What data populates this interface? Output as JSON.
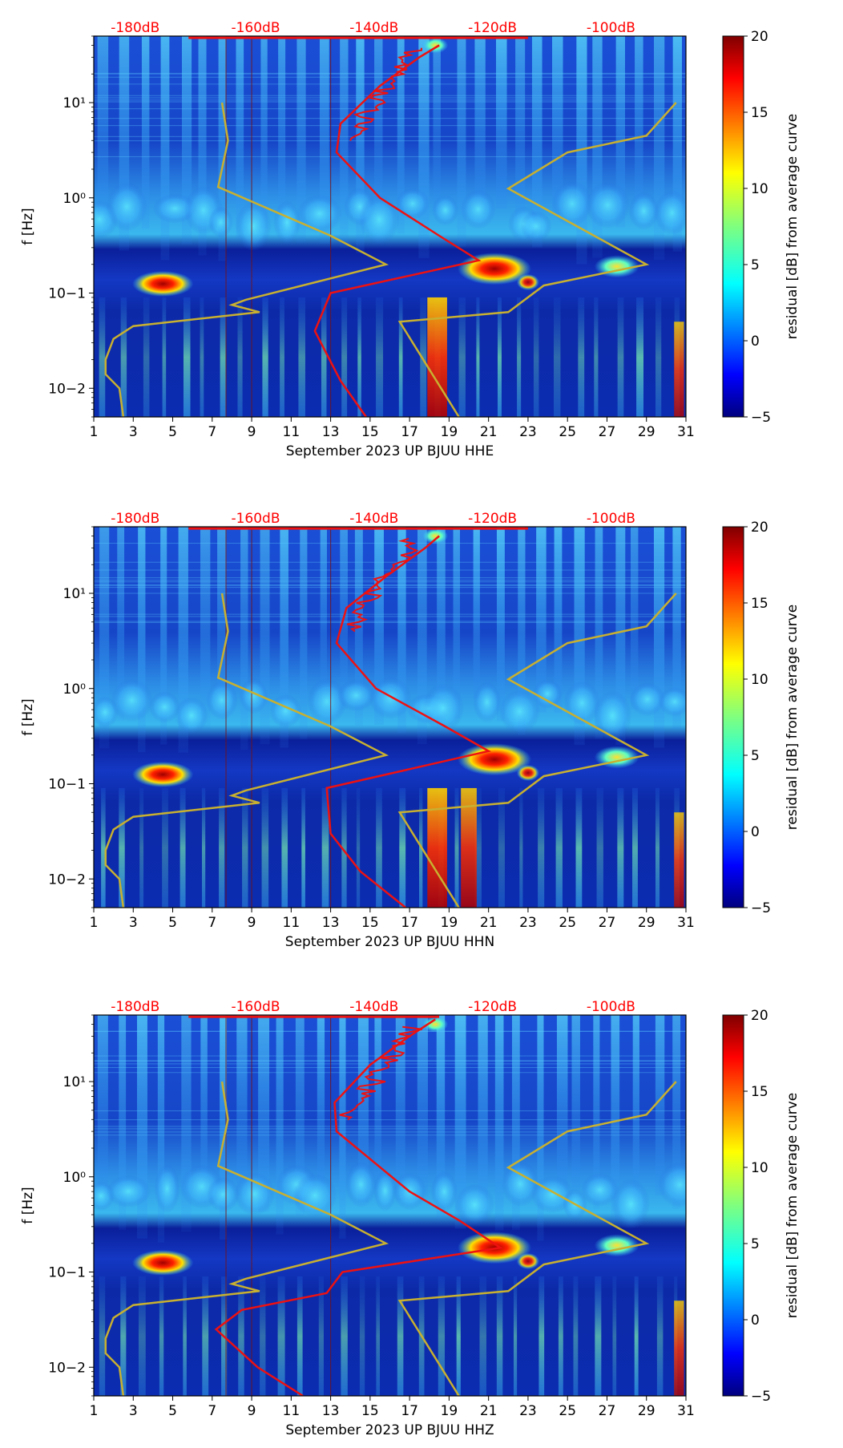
{
  "chart_data": [
    {
      "type": "heatmap",
      "channel": "HHE",
      "xlabel": "September 2023 UP BJUU  HHE",
      "ylabel": "f [Hz]",
      "colorbar_label": "residual [dB] from average curve",
      "xlim": [
        1,
        31
      ],
      "ylim_hz": [
        0.005,
        50
      ],
      "yscale": "log",
      "x_ticks": [
        "1",
        "3",
        "5",
        "7",
        "9",
        "11",
        "13",
        "15",
        "17",
        "19",
        "21",
        "23",
        "25",
        "27",
        "29",
        "31"
      ],
      "y_ticks": [
        "10−2",
        "10−1",
        "10⁰",
        "10¹"
      ],
      "top_axis_labels": [
        "-180dB",
        "-160dB",
        "-140dB",
        "-120dB",
        "-100dB"
      ],
      "colorbar_ticks": [
        "20",
        "15",
        "10",
        "5",
        "0",
        "−5"
      ],
      "colorbar_range_db": [
        -5,
        20
      ]
    },
    {
      "type": "heatmap",
      "channel": "HHN",
      "xlabel": "September 2023 UP BJUU  HHN",
      "ylabel": "f [Hz]",
      "colorbar_label": "residual [dB] from average curve",
      "xlim": [
        1,
        31
      ],
      "ylim_hz": [
        0.005,
        50
      ],
      "yscale": "log",
      "x_ticks": [
        "1",
        "3",
        "5",
        "7",
        "9",
        "11",
        "13",
        "15",
        "17",
        "19",
        "21",
        "23",
        "25",
        "27",
        "29",
        "31"
      ],
      "y_ticks": [
        "10−2",
        "10−1",
        "10⁰",
        "10¹"
      ],
      "top_axis_labels": [
        "-180dB",
        "-160dB",
        "-140dB",
        "-120dB",
        "-100dB"
      ],
      "colorbar_ticks": [
        "20",
        "15",
        "10",
        "5",
        "0",
        "−5"
      ],
      "colorbar_range_db": [
        -5,
        20
      ]
    },
    {
      "type": "heatmap",
      "channel": "HHZ",
      "xlabel": "September 2023 UP BJUU  HHZ",
      "ylabel": "f [Hz]",
      "colorbar_label": "residual [dB] from average curve",
      "xlim": [
        1,
        31
      ],
      "ylim_hz": [
        0.005,
        50
      ],
      "yscale": "log",
      "x_ticks": [
        "1",
        "3",
        "5",
        "7",
        "9",
        "11",
        "13",
        "15",
        "17",
        "19",
        "21",
        "23",
        "25",
        "27",
        "29",
        "31"
      ],
      "y_ticks": [
        "10−2",
        "10−1",
        "10⁰",
        "10¹"
      ],
      "top_axis_labels": [
        "-180dB",
        "-160dB",
        "-140dB",
        "-120dB",
        "-100dB"
      ],
      "colorbar_ticks": [
        "20",
        "15",
        "10",
        "5",
        "0",
        "−5"
      ],
      "colorbar_range_db": [
        -5,
        20
      ]
    }
  ],
  "colors": {
    "average_curve": "#ee1111",
    "noise_model": "#c8b030",
    "top_label": "#ff0000"
  }
}
